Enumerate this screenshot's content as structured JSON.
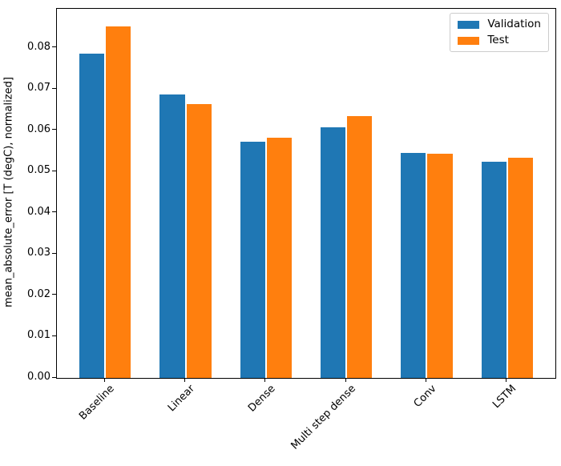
{
  "chart_data": {
    "type": "bar",
    "title": "",
    "xlabel": "",
    "ylabel": "mean_absolute_error [T (degC), normalized]",
    "categories": [
      "Baseline",
      "Linear",
      "Dense",
      "Multi step dense",
      "Conv",
      "LSTM"
    ],
    "series": [
      {
        "name": "Validation",
        "color": "#1f77b4",
        "values": [
          0.0785,
          0.0686,
          0.0573,
          0.0607,
          0.0545,
          0.0524
        ]
      },
      {
        "name": "Test",
        "color": "#ff7f0e",
        "values": [
          0.0852,
          0.0663,
          0.0583,
          0.0634,
          0.0543,
          0.0533
        ]
      }
    ],
    "ylim": [
      0,
      0.08946
    ],
    "xlim": [
      -0.6,
      5.6
    ],
    "yticks": [
      0,
      0.01,
      0.02,
      0.03,
      0.04,
      0.05,
      0.06,
      0.07,
      0.08
    ],
    "ytick_labels": [
      "0.00",
      "0.01",
      "0.02",
      "0.03",
      "0.04",
      "0.05",
      "0.06",
      "0.07",
      "0.08"
    ],
    "xtick_rotation": 45,
    "grid": false,
    "legend": {
      "position": "upper right",
      "entries": [
        "Validation",
        "Test"
      ]
    },
    "bar_width": 0.31,
    "bar_offsets": [
      -0.165,
      0.165
    ],
    "colors": {
      "spine": "#000000",
      "text": "#000000",
      "background": "#ffffff"
    }
  }
}
